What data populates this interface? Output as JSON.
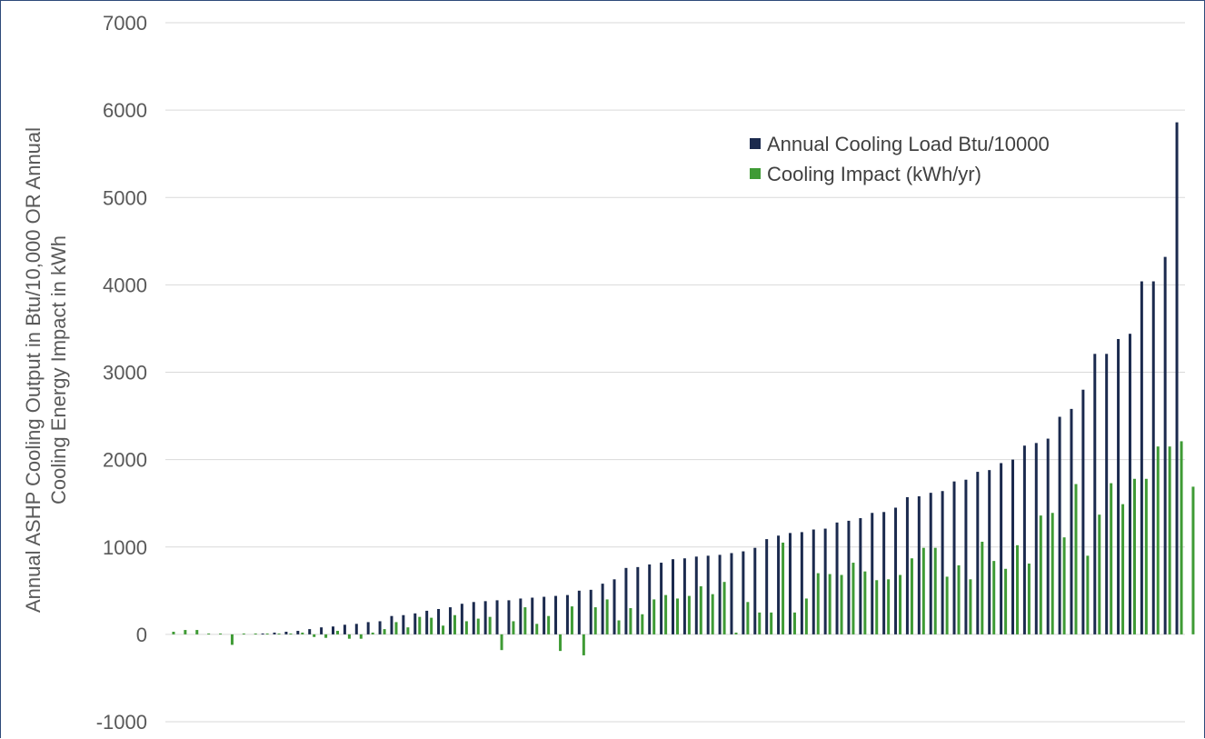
{
  "chart_data": {
    "type": "bar",
    "title": "",
    "xlabel": "",
    "ylabel_lines": [
      "Annual ASHP Cooling Output in Btu/10,000 OR Annual",
      "Cooling Energy Impact in kWh"
    ],
    "ylim": [
      -1000,
      7000
    ],
    "yticks": [
      -1000,
      0,
      1000,
      2000,
      3000,
      4000,
      5000,
      6000,
      7000
    ],
    "ytick_labels": [
      "-1000",
      "0",
      "1000",
      "2000",
      "3000",
      "4000",
      "5000",
      "6000",
      "7000"
    ],
    "grid": true,
    "legend_position": "top-right",
    "colors": {
      "load": "#1b2a4e",
      "impact": "#3f9b35",
      "grid": "#d9d9d9"
    },
    "series": [
      {
        "name": "Annual Cooling Load Btu/10000",
        "values": [
          0,
          0,
          0,
          0,
          0,
          0,
          0,
          0,
          10,
          20,
          30,
          40,
          60,
          80,
          90,
          110,
          120,
          140,
          150,
          210,
          220,
          240,
          270,
          290,
          310,
          350,
          370,
          380,
          390,
          390,
          410,
          420,
          430,
          440,
          450,
          500,
          510,
          580,
          630,
          760,
          770,
          800,
          820,
          860,
          870,
          890,
          900,
          910,
          930,
          950,
          990,
          1090,
          1130,
          1160,
          1170,
          1200,
          1210,
          1280,
          1300,
          1330,
          1390,
          1400,
          1450,
          1570,
          1580,
          1620,
          1640,
          1750,
          1770,
          1860,
          1880,
          1960,
          2000,
          2160,
          2190,
          2240,
          2490,
          2580,
          2800,
          3210,
          3210,
          3380,
          3440,
          4040,
          4040,
          4320,
          5860
        ]
      },
      {
        "name": "Cooling Impact (kWh/yr)",
        "values": [
          30,
          50,
          50,
          10,
          10,
          -120,
          10,
          10,
          10,
          10,
          10,
          20,
          -30,
          -40,
          40,
          -50,
          -50,
          20,
          60,
          140,
          80,
          200,
          190,
          100,
          220,
          150,
          180,
          200,
          -180,
          150,
          310,
          120,
          210,
          -190,
          320,
          -240,
          310,
          400,
          160,
          300,
          230,
          400,
          450,
          410,
          440,
          550,
          460,
          600,
          20,
          370,
          250,
          250,
          1050,
          250,
          410,
          700,
          690,
          680,
          820,
          720,
          620,
          630,
          680,
          870,
          990,
          990,
          660,
          790,
          630,
          1060,
          840,
          750,
          1020,
          810,
          1360,
          1390,
          1110,
          1720,
          900,
          1370,
          1730,
          1490,
          1780,
          1780,
          2150,
          2150,
          2210,
          1690
        ]
      }
    ]
  }
}
